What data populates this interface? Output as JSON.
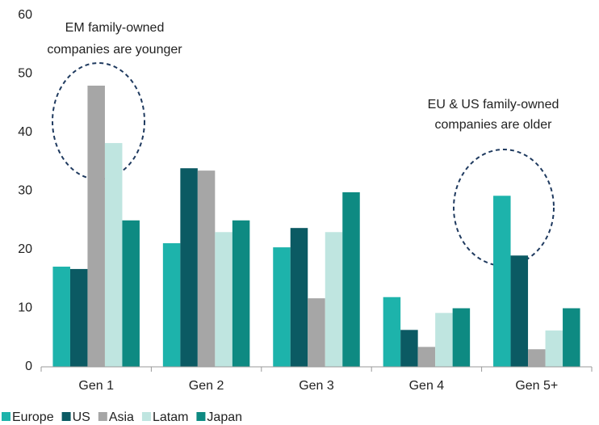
{
  "chart_data": {
    "type": "bar",
    "categories": [
      "Gen 1",
      "Gen 2",
      "Gen 3",
      "Gen 4",
      "Gen 5+"
    ],
    "series": [
      {
        "name": "Europe",
        "color": "#1db3ab",
        "values": [
          17.1,
          21.1,
          20.4,
          11.9,
          29.2
        ]
      },
      {
        "name": "US",
        "color": "#0b5a63",
        "values": [
          16.7,
          33.9,
          23.7,
          6.3,
          19
        ]
      },
      {
        "name": "Asia",
        "color": "#a6a6a6",
        "values": [
          48,
          33.5,
          11.7,
          3.4,
          3
        ]
      },
      {
        "name": "Latam",
        "color": "#bfe5e0",
        "values": [
          38.2,
          23,
          23,
          9.2,
          6.2
        ]
      },
      {
        "name": "Japan",
        "color": "#0e8a82",
        "values": [
          25,
          25,
          29.8,
          10,
          10
        ]
      }
    ],
    "ylim": [
      0,
      60
    ],
    "yticks": [
      0,
      10,
      20,
      30,
      40,
      50,
      60
    ],
    "grid": false,
    "legend": "bottom-left",
    "annotations": [
      {
        "lines": [
          "EM family-owned",
          "companies are younger"
        ]
      },
      {
        "lines": [
          "EU & US  family-owned",
          "companies are older"
        ]
      }
    ]
  }
}
